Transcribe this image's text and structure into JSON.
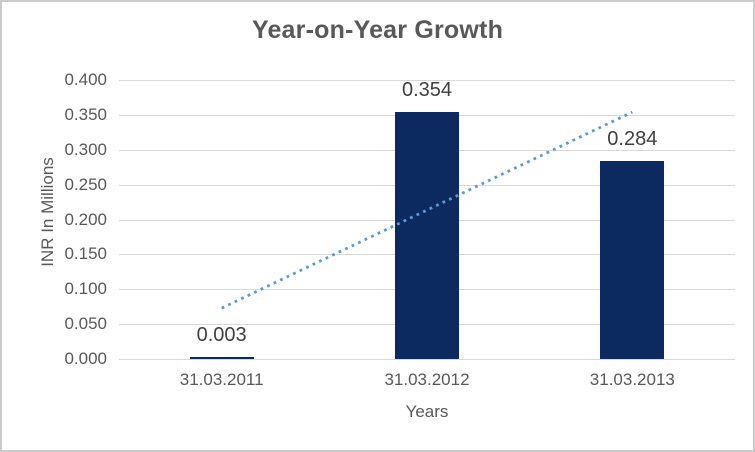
{
  "chart_data": {
    "type": "bar",
    "title": "Year-on-Year Growth",
    "xlabel": "Years",
    "ylabel": "INR In Millions",
    "categories": [
      "31.03.2011",
      "31.03.2012",
      "31.03.2013"
    ],
    "values": [
      0.003,
      0.354,
      0.284
    ],
    "data_labels": [
      "0.003",
      "0.354",
      "0.284"
    ],
    "ylim": [
      0.0,
      0.4
    ],
    "ytick_step": 0.05,
    "ytick_labels": [
      "0.000",
      "0.050",
      "0.100",
      "0.150",
      "0.200",
      "0.250",
      "0.300",
      "0.350",
      "0.400"
    ],
    "grid": true,
    "legend": false,
    "legend_position": "none",
    "trendline": {
      "type": "linear",
      "style": "dotted",
      "start_category_index": 0,
      "end_category_index": 2,
      "start_value": 0.073,
      "end_value": 0.354
    },
    "colors": {
      "bar": "#0c2a60",
      "trendline": "#5b9bd5",
      "gridline": "#d9d9d9",
      "title_text": "#595959",
      "axis_text": "#595959",
      "data_label_text": "#404040",
      "chart_border": "#cbcbcb",
      "background": "#ffffff"
    }
  }
}
